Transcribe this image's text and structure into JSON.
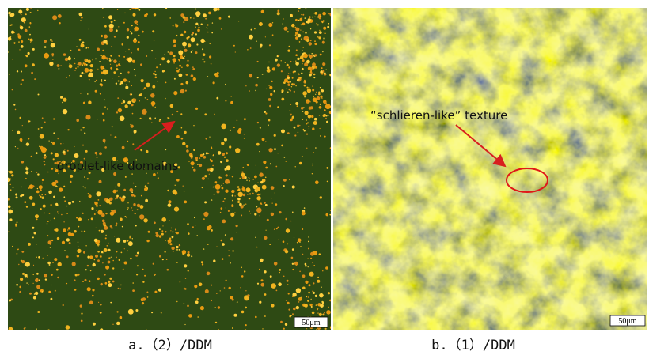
{
  "panels": [
    {
      "annotation": "droplet-like domains",
      "scale_bar": "50μm",
      "caption": "a.（2）/DDM"
    },
    {
      "annotation": "“schlieren-like” texture",
      "scale_bar": "50μm",
      "caption": "b.（1）/DDM"
    }
  ]
}
